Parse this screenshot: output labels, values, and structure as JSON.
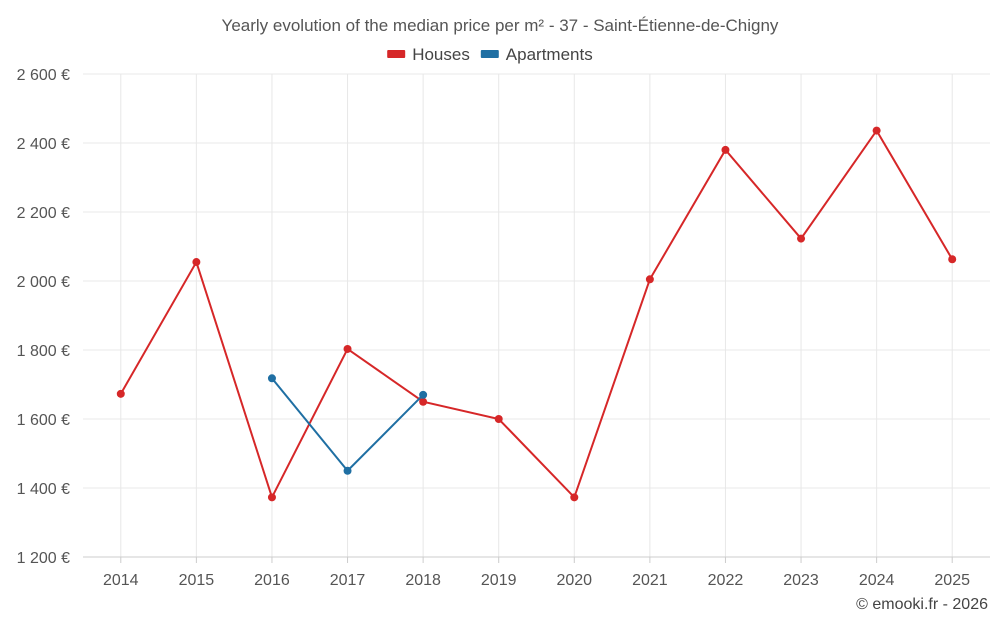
{
  "chart_data": {
    "type": "line",
    "title": "Yearly evolution of the median price per m² - 37 - Saint-Étienne-de-Chigny",
    "x": [
      "2014",
      "2015",
      "2016",
      "2017",
      "2018",
      "2019",
      "2020",
      "2021",
      "2022",
      "2023",
      "2024",
      "2025"
    ],
    "ylim": [
      1200,
      2600
    ],
    "yticks": [
      1200,
      1400,
      1600,
      1800,
      2000,
      2200,
      2400,
      2600
    ],
    "ytick_labels": [
      "1 200 €",
      "1 400 €",
      "1 600 €",
      "1 800 €",
      "2 000 €",
      "2 200 €",
      "2 400 €",
      "2 600 €"
    ],
    "grid": true,
    "legend_placement": "top-center",
    "series": [
      {
        "name": "Houses",
        "color": "#d62728",
        "values": [
          1673,
          2055,
          1373,
          1803,
          1650,
          1600,
          1373,
          2005,
          2380,
          2123,
          2436,
          2063
        ]
      },
      {
        "name": "Apartments",
        "color": "#1f6fa3",
        "values": [
          null,
          null,
          1718,
          1450,
          1670,
          null,
          null,
          null,
          null,
          null,
          null,
          null
        ]
      }
    ]
  },
  "credit": "© emooki.fr - 2026"
}
